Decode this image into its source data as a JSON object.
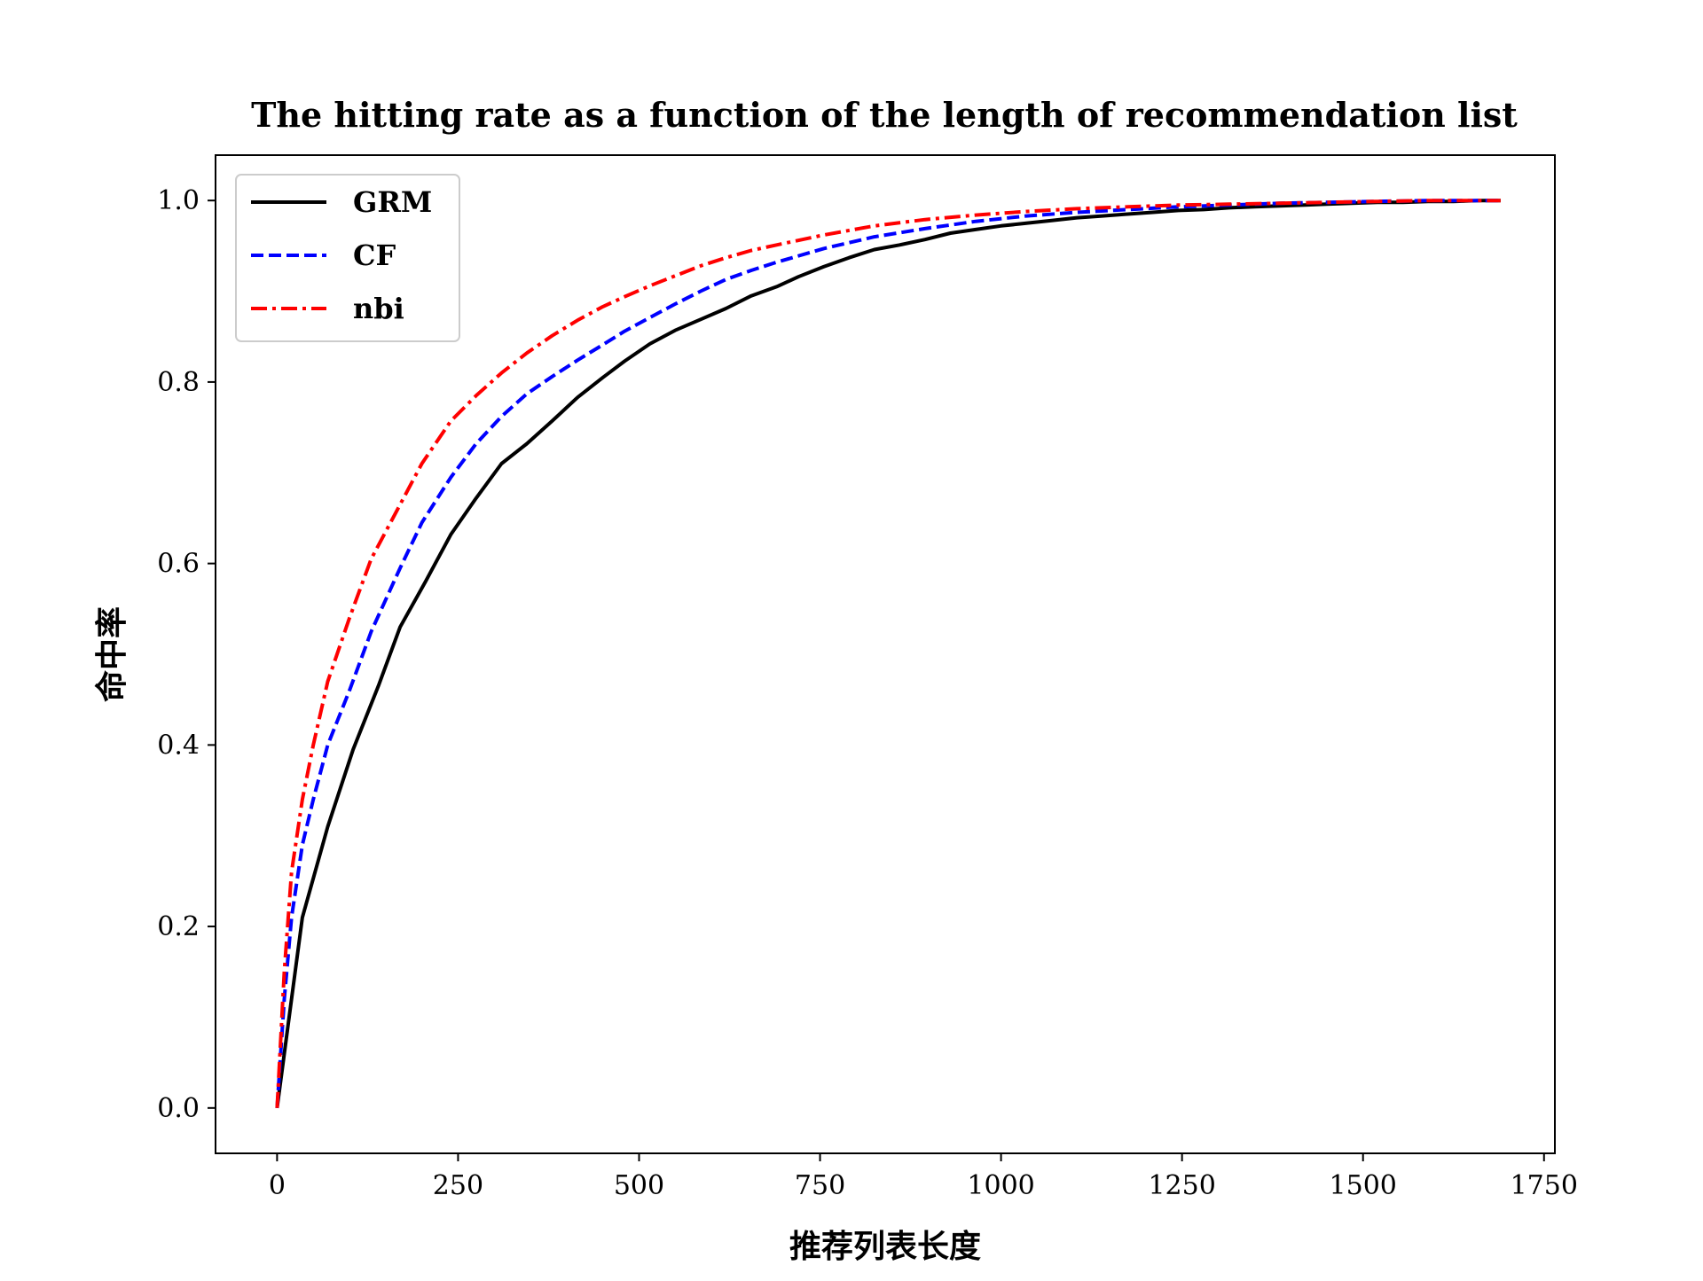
{
  "colors": {
    "GRM": "#000000",
    "CF": "#0000ff",
    "nbi": "#ff0000"
  },
  "chart_data": {
    "type": "line",
    "title": "The hitting rate as a function of the length of recommendation list",
    "xlabel": "推荐列表长度",
    "ylabel": "命中率",
    "xlim": [
      -85,
      1765
    ],
    "ylim": [
      -0.05,
      1.05
    ],
    "xticks": [
      0,
      250,
      500,
      750,
      1000,
      1250,
      1500,
      1750
    ],
    "xtick_labels": [
      "0",
      "250",
      "500",
      "750",
      "1000",
      "1250",
      "1500",
      "1750"
    ],
    "yticks": [
      0.0,
      0.2,
      0.4,
      0.6,
      0.8,
      1.0
    ],
    "ytick_labels": [
      "0.0",
      "0.2",
      "0.4",
      "0.6",
      "0.8",
      "1.0"
    ],
    "grid": false,
    "legend_position": "top-left",
    "series": [
      {
        "name": "GRM",
        "style": "solid",
        "x": [
          0,
          35,
          70,
          105,
          140,
          170,
          205,
          240,
          275,
          310,
          345,
          380,
          415,
          450,
          480,
          515,
          550,
          585,
          620,
          655,
          690,
          720,
          755,
          790,
          825,
          860,
          895,
          930,
          965,
          1000,
          1035,
          1070,
          1105,
          1140,
          1175,
          1210,
          1245,
          1280,
          1315,
          1350,
          1385,
          1420,
          1450,
          1485,
          1520,
          1555,
          1590,
          1625,
          1660,
          1690
        ],
        "y": [
          0.0,
          0.21,
          0.31,
          0.395,
          0.465,
          0.53,
          0.58,
          0.632,
          0.672,
          0.71,
          0.732,
          0.757,
          0.783,
          0.805,
          0.823,
          0.842,
          0.857,
          0.869,
          0.881,
          0.895,
          0.905,
          0.916,
          0.927,
          0.937,
          0.946,
          0.951,
          0.957,
          0.964,
          0.968,
          0.972,
          0.975,
          0.978,
          0.981,
          0.983,
          0.985,
          0.987,
          0.989,
          0.99,
          0.992,
          0.993,
          0.994,
          0.995,
          0.996,
          0.997,
          0.998,
          0.998,
          0.999,
          0.999,
          1.0,
          1.0
        ]
      },
      {
        "name": "CF",
        "style": "dashed",
        "x": [
          0,
          10,
          20,
          35,
          50,
          70,
          100,
          130,
          170,
          200,
          240,
          275,
          310,
          345,
          380,
          415,
          450,
          480,
          515,
          550,
          585,
          620,
          655,
          690,
          755,
          825,
          895,
          965,
          1035,
          1105,
          1175,
          1245,
          1315,
          1385,
          1450,
          1520,
          1590,
          1660,
          1690
        ],
        "y": [
          0.0,
          0.12,
          0.21,
          0.29,
          0.34,
          0.4,
          0.46,
          0.525,
          0.595,
          0.645,
          0.695,
          0.732,
          0.762,
          0.787,
          0.806,
          0.824,
          0.841,
          0.856,
          0.871,
          0.886,
          0.9,
          0.913,
          0.923,
          0.932,
          0.947,
          0.96,
          0.969,
          0.977,
          0.983,
          0.987,
          0.99,
          0.993,
          0.995,
          0.997,
          0.998,
          0.999,
          1.0,
          1.0,
          1.0
        ]
      },
      {
        "name": "nbi",
        "style": "dashdot",
        "x": [
          0,
          10,
          20,
          35,
          50,
          70,
          100,
          130,
          170,
          200,
          240,
          275,
          310,
          345,
          380,
          415,
          450,
          480,
          515,
          550,
          585,
          620,
          655,
          690,
          755,
          825,
          895,
          965,
          1035,
          1105,
          1175,
          1245,
          1315,
          1385,
          1450,
          1520,
          1590,
          1660,
          1690
        ],
        "y": [
          0.0,
          0.15,
          0.26,
          0.34,
          0.4,
          0.47,
          0.54,
          0.605,
          0.665,
          0.71,
          0.757,
          0.785,
          0.81,
          0.832,
          0.851,
          0.868,
          0.883,
          0.894,
          0.906,
          0.917,
          0.928,
          0.937,
          0.945,
          0.951,
          0.962,
          0.972,
          0.979,
          0.984,
          0.988,
          0.991,
          0.993,
          0.995,
          0.996,
          0.997,
          0.998,
          0.999,
          1.0,
          1.0,
          1.0
        ]
      }
    ]
  }
}
